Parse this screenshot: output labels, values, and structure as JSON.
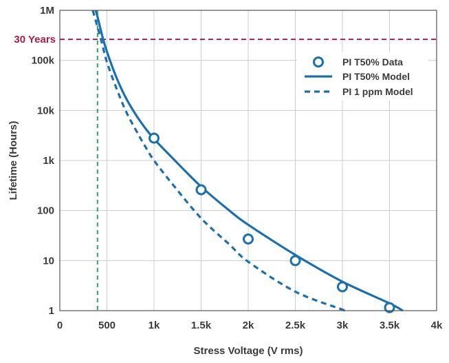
{
  "colors": {
    "series": "#1a6fae",
    "reference_line": "#a51f45",
    "vertical_line": "#2aa764",
    "grid": "#cccccc",
    "frame": "#555555"
  },
  "chart_data": {
    "type": "line",
    "title": "",
    "xlabel": "Stress Voltage (V rms)",
    "ylabel": "Lifetime (Hours)",
    "xlim": [
      0,
      4000
    ],
    "ylim": [
      1,
      1000000
    ],
    "y_scale": "log",
    "grid": true,
    "legend_position": "top-right",
    "x_ticks": [
      {
        "value": 0,
        "label": "0"
      },
      {
        "value": 500,
        "label": "500"
      },
      {
        "value": 1000,
        "label": "1k"
      },
      {
        "value": 1500,
        "label": "1.5k"
      },
      {
        "value": 2000,
        "label": "2k"
      },
      {
        "value": 2500,
        "label": "2.5k"
      },
      {
        "value": 3000,
        "label": "3k"
      },
      {
        "value": 3500,
        "label": "3.5k"
      },
      {
        "value": 4000,
        "label": "4k"
      }
    ],
    "y_ticks": [
      {
        "value": 1,
        "label": "1"
      },
      {
        "value": 10,
        "label": "10"
      },
      {
        "value": 100,
        "label": "100"
      },
      {
        "value": 1000,
        "label": "1k"
      },
      {
        "value": 10000,
        "label": "10k"
      },
      {
        "value": 100000,
        "label": "100k"
      },
      {
        "value": 1000000,
        "label": "1M"
      }
    ],
    "series": [
      {
        "name": "PI T50% Data",
        "style": "markers",
        "x": [
          1000,
          1500,
          2000,
          2500,
          3000,
          3500
        ],
        "y": [
          2800,
          260,
          27,
          10,
          3,
          1.15
        ]
      },
      {
        "name": "PI T50% Model",
        "style": "solid",
        "x": [
          380,
          400,
          450,
          500,
          600,
          700,
          800,
          900,
          1000,
          1200,
          1500,
          1800,
          2000,
          2500,
          3000,
          3500,
          3640
        ],
        "y": [
          1000000,
          750000,
          310000,
          150000,
          46000,
          18000,
          8600,
          4600,
          2700,
          1100,
          300,
          100,
          52,
          13,
          3.8,
          1.4,
          1.0
        ]
      },
      {
        "name": "PI 1 ppm Model",
        "style": "dashed",
        "x": [
          350,
          400,
          450,
          500,
          600,
          700,
          800,
          900,
          1000,
          1200,
          1500,
          1800,
          2000,
          2500,
          3000,
          3020
        ],
        "y": [
          1000000,
          460000,
          210000,
          92000,
          28000,
          9800,
          4300,
          2000,
          1000,
          330,
          70,
          21,
          9.5,
          2.4,
          1.05,
          1.0
        ]
      }
    ],
    "reference_lines": [
      {
        "orientation": "horizontal",
        "value": 262800,
        "label": "30 Years"
      },
      {
        "orientation": "vertical",
        "value": 400,
        "label": ""
      }
    ]
  }
}
